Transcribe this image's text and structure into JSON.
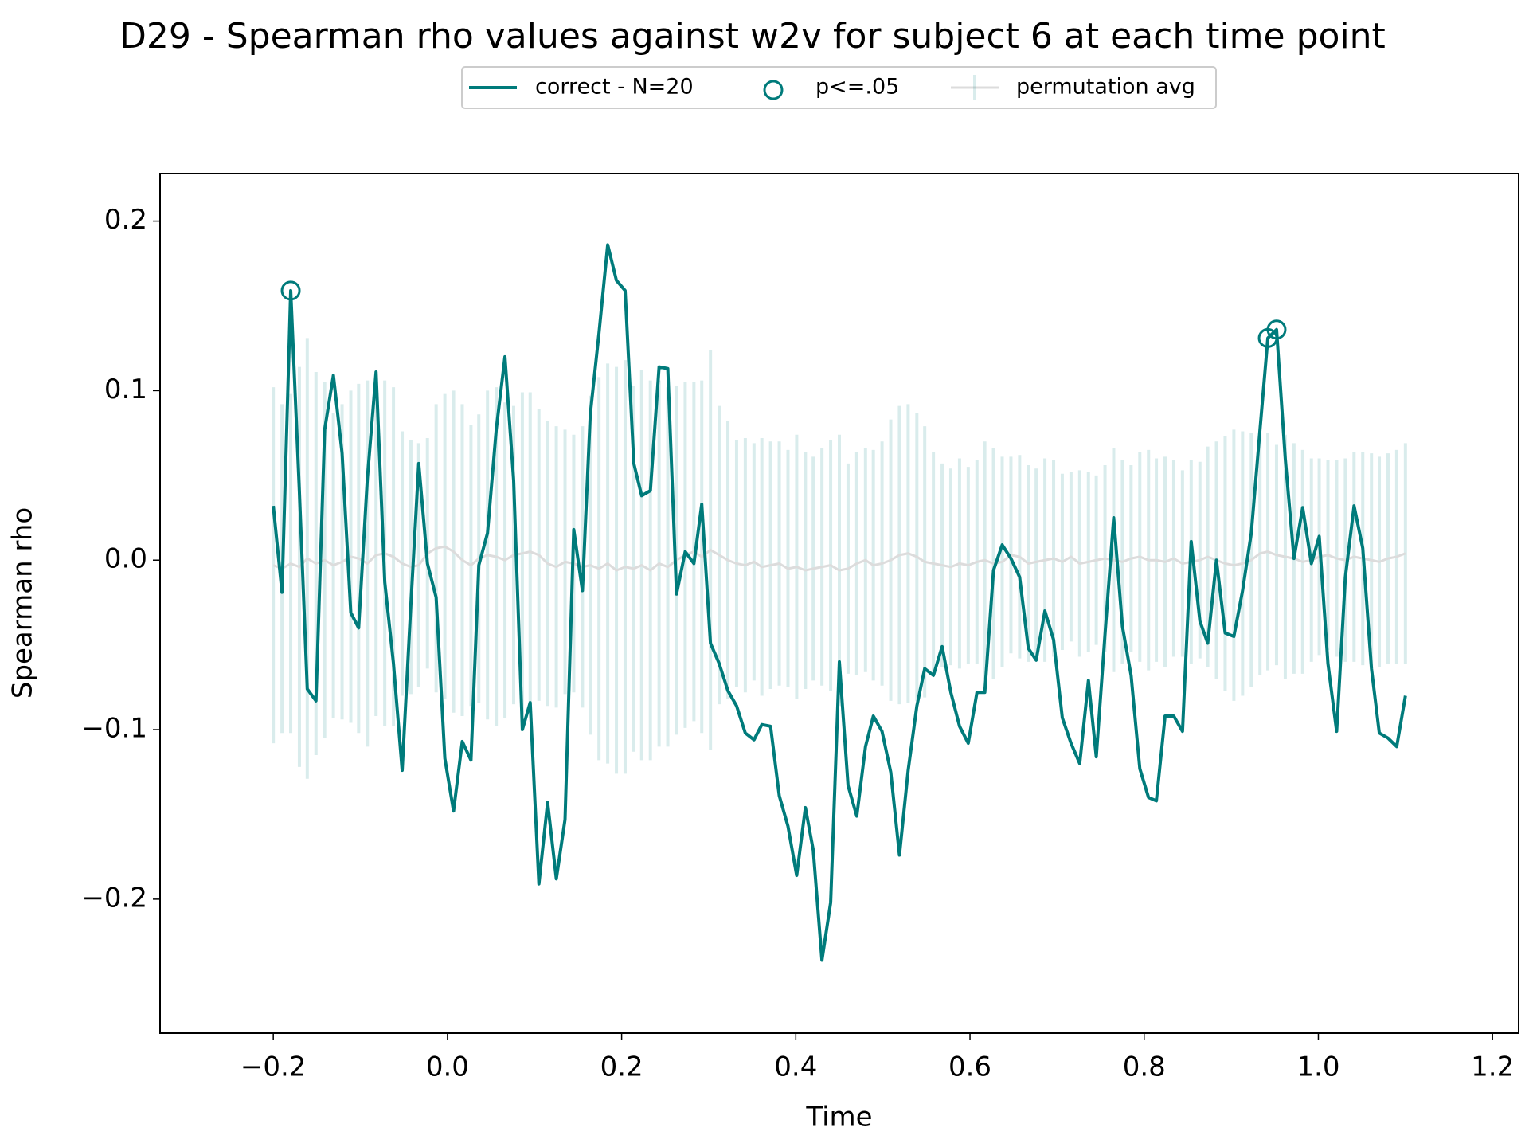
{
  "chart_data": {
    "type": "line",
    "title": "D29 - Spearman rho values against w2v for subject 6 at each time point",
    "x_label": "Time",
    "y_label": "Spearman rho",
    "legend": "top",
    "xlim": [
      -0.33,
      1.23
    ],
    "ylim": [
      -0.279,
      0.228
    ],
    "xticks": [
      {
        "value": -0.2,
        "label": "−0.2"
      },
      {
        "value": 0,
        "label": "0.0"
      },
      {
        "value": 0.2,
        "label": "0.2"
      },
      {
        "value": 0.4,
        "label": "0.4"
      },
      {
        "value": 0.6,
        "label": "0.6"
      },
      {
        "value": 0.8,
        "label": "0.8"
      },
      {
        "value": 1,
        "label": "1.0"
      },
      {
        "value": 1.2,
        "label": "1.2"
      }
    ],
    "yticks": [
      {
        "value": -0.2,
        "label": "−0.2"
      },
      {
        "value": -0.1,
        "label": "−0.1"
      },
      {
        "value": 0,
        "label": "0.0"
      },
      {
        "value": 0.1,
        "label": "0.1"
      },
      {
        "value": 0.2,
        "label": "0.2"
      }
    ],
    "x": [
      -0.2,
      -0.19,
      -0.18,
      -0.17,
      -0.161,
      -0.151,
      -0.141,
      -0.131,
      -0.121,
      -0.111,
      -0.102,
      -0.092,
      -0.082,
      -0.072,
      -0.062,
      -0.052,
      -0.042,
      -0.033,
      -0.023,
      -0.013,
      -0.003,
      0.007,
      0.017,
      0.027,
      0.036,
      0.046,
      0.056,
      0.066,
      0.076,
      0.086,
      0.095,
      0.105,
      0.115,
      0.125,
      0.135,
      0.145,
      0.155,
      0.164,
      0.174,
      0.184,
      0.194,
      0.204,
      0.214,
      0.223,
      0.233,
      0.243,
      0.253,
      0.263,
      0.273,
      0.283,
      0.292,
      0.302,
      0.312,
      0.322,
      0.332,
      0.342,
      0.352,
      0.361,
      0.371,
      0.381,
      0.391,
      0.401,
      0.411,
      0.42,
      0.43,
      0.44,
      0.45,
      0.46,
      0.47,
      0.48,
      0.489,
      0.499,
      0.509,
      0.519,
      0.529,
      0.539,
      0.548,
      0.558,
      0.568,
      0.578,
      0.588,
      0.598,
      0.608,
      0.617,
      0.627,
      0.637,
      0.647,
      0.657,
      0.667,
      0.676,
      0.686,
      0.696,
      0.706,
      0.716,
      0.726,
      0.736,
      0.745,
      0.755,
      0.765,
      0.775,
      0.785,
      0.795,
      0.805,
      0.814,
      0.824,
      0.834,
      0.844,
      0.854,
      0.864,
      0.873,
      0.883,
      0.893,
      0.903,
      0.913,
      0.923,
      0.933,
      0.942,
      0.952,
      0.962,
      0.972,
      0.982,
      0.992,
      1.001,
      1.011,
      1.021,
      1.031,
      1.041,
      1.051,
      1.061,
      1.07,
      1.08,
      1.09,
      1.1
    ],
    "series": [
      {
        "name": "correct - N=20",
        "color": "#007b7b",
        "values": [
          0.032,
          -0.019,
          0.159,
          0.04,
          -0.076,
          -0.083,
          0.077,
          0.109,
          0.063,
          -0.031,
          -0.04,
          0.048,
          0.111,
          -0.013,
          -0.061,
          -0.124,
          -0.026,
          0.057,
          -0.002,
          -0.022,
          -0.117,
          -0.148,
          -0.107,
          -0.118,
          -0.003,
          0.016,
          0.077,
          0.12,
          0.047,
          -0.1,
          -0.084,
          -0.191,
          -0.143,
          -0.188,
          -0.153,
          0.018,
          -0.018,
          0.086,
          0.134,
          0.186,
          0.165,
          0.159,
          0.057,
          0.038,
          0.041,
          0.114,
          0.113,
          -0.02,
          0.005,
          -0.002,
          0.033,
          -0.049,
          -0.061,
          -0.077,
          -0.086,
          -0.102,
          -0.106,
          -0.097,
          -0.098,
          -0.139,
          -0.157,
          -0.186,
          -0.146,
          -0.171,
          -0.236,
          -0.202,
          -0.06,
          -0.133,
          -0.151,
          -0.11,
          -0.092,
          -0.101,
          -0.125,
          -0.174,
          -0.124,
          -0.086,
          -0.064,
          -0.068,
          -0.051,
          -0.078,
          -0.098,
          -0.108,
          -0.078,
          -0.078,
          -0.006,
          0.009,
          0.001,
          -0.01,
          -0.052,
          -0.059,
          -0.03,
          -0.047,
          -0.093,
          -0.108,
          -0.12,
          -0.071,
          -0.116,
          -0.044,
          0.025,
          -0.039,
          -0.068,
          -0.123,
          -0.14,
          -0.142,
          -0.092,
          -0.092,
          -0.101,
          0.011,
          -0.036,
          -0.049,
          0,
          -0.043,
          -0.045,
          -0.018,
          0.016,
          0.077,
          0.131,
          0.136,
          0.06,
          0.001,
          0.031,
          -0.002,
          0.014,
          -0.061,
          -0.101,
          -0.01,
          0.032,
          0.007,
          -0.064,
          -0.102,
          -0.105,
          -0.11,
          -0.08
        ]
      },
      {
        "name": "p<=.05",
        "color": "#007b7b",
        "marker": "circle",
        "x": [
          -0.18,
          0.942,
          0.952
        ],
        "values": [
          0.159,
          0.131,
          0.136
        ]
      },
      {
        "name": "permutation avg",
        "color": "#008080",
        "values": [
          -0.003,
          -0.005,
          -0.002,
          -0.004,
          0.001,
          -0.002,
          0,
          -0.003,
          -0.001,
          0.002,
          0.001,
          -0.002,
          0.003,
          0.004,
          0.002,
          -0.002,
          -0.004,
          -0.003,
          0.004,
          0.007,
          0.008,
          0.005,
          0,
          -0.003,
          0.001,
          0.003,
          0.002,
          0,
          0.003,
          0.004,
          0.005,
          0.003,
          -0.002,
          -0.004,
          -0.001,
          -0.002,
          -0.004,
          -0.003,
          -0.005,
          -0.002,
          -0.006,
          -0.004,
          -0.005,
          -0.003,
          -0.006,
          -0.002,
          -0.004,
          0,
          0.003,
          0.005,
          0.002,
          0.006,
          0.003,
          0,
          -0.002,
          -0.003,
          -0.001,
          -0.004,
          -0.003,
          -0.002,
          -0.005,
          -0.004,
          -0.006,
          -0.005,
          -0.004,
          -0.003,
          -0.006,
          -0.005,
          -0.002,
          0,
          -0.003,
          -0.002,
          0,
          0.003,
          0.004,
          0.002,
          -0.001,
          -0.002,
          -0.003,
          -0.004,
          -0.002,
          -0.003,
          -0.001,
          0,
          -0.002,
          -0.001,
          0.003,
          0.002,
          -0.002,
          -0.001,
          0,
          0.001,
          -0.001,
          0.002,
          -0.002,
          -0.001,
          0,
          0.001,
          0,
          -0.001,
          0.001,
          0.002,
          0,
          0,
          -0.001,
          0.001,
          -0.002,
          -0.001,
          0,
          0.002,
          0,
          -0.002,
          -0.003,
          -0.002,
          0,
          0.004,
          0.005,
          0.003,
          0.002,
          0.001,
          -0.001,
          0,
          0.002,
          0.003,
          0.001,
          0,
          0.002,
          0.001,
          0,
          -0.001,
          0.001,
          0.002,
          0.004
        ],
        "errors": [
          0.105,
          0.097,
          0.1,
          0.118,
          0.13,
          0.113,
          0.105,
          0.09,
          0.093,
          0.098,
          0.103,
          0.108,
          0.095,
          0.102,
          0.1,
          0.078,
          0.075,
          0.072,
          0.068,
          0.085,
          0.09,
          0.095,
          0.092,
          0.083,
          0.085,
          0.097,
          0.1,
          0.093,
          0.088,
          0.095,
          0.094,
          0.086,
          0.084,
          0.083,
          0.078,
          0.076,
          0.083,
          0.1,
          0.113,
          0.118,
          0.12,
          0.122,
          0.108,
          0.115,
          0.112,
          0.108,
          0.106,
          0.103,
          0.102,
          0.1,
          0.104,
          0.118,
          0.088,
          0.082,
          0.073,
          0.075,
          0.07,
          0.076,
          0.073,
          0.072,
          0.07,
          0.078,
          0.07,
          0.066,
          0.07,
          0.074,
          0.08,
          0.062,
          0.066,
          0.066,
          0.068,
          0.072,
          0.083,
          0.088,
          0.088,
          0.085,
          0.08,
          0.066,
          0.06,
          0.058,
          0.062,
          0.058,
          0.06,
          0.07,
          0.068,
          0.062,
          0.058,
          0.06,
          0.058,
          0.055,
          0.06,
          0.058,
          0.052,
          0.05,
          0.055,
          0.053,
          0.05,
          0.055,
          0.066,
          0.06,
          0.055,
          0.062,
          0.065,
          0.06,
          0.062,
          0.058,
          0.055,
          0.06,
          0.058,
          0.065,
          0.07,
          0.075,
          0.08,
          0.078,
          0.075,
          0.072,
          0.07,
          0.065,
          0.072,
          0.068,
          0.066,
          0.06,
          0.058,
          0.056,
          0.058,
          0.06,
          0.062,
          0.063,
          0.063,
          0.062,
          0.062,
          0.063,
          0.065
        ]
      }
    ]
  }
}
